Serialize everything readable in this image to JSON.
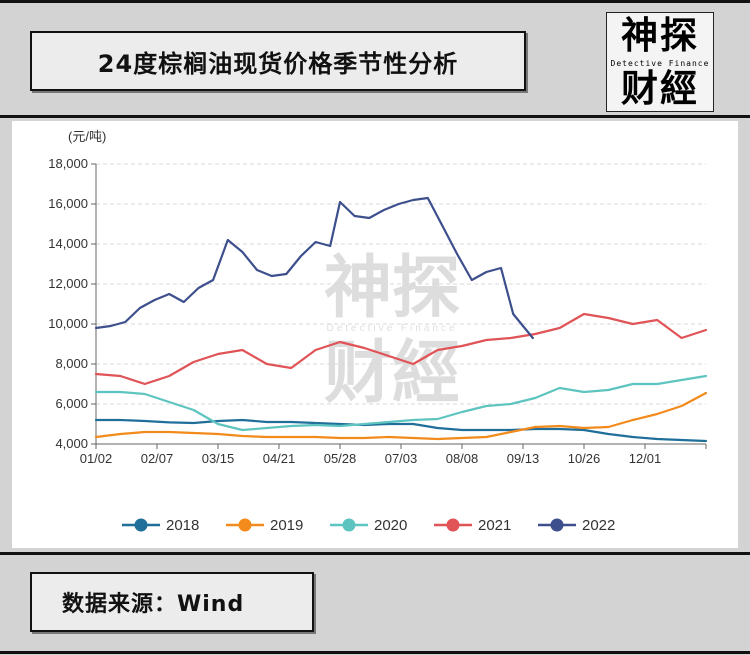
{
  "header": {
    "title": "24度棕榈油现货价格季节性分析",
    "logo_top": "神探",
    "logo_sub": "Detective Finance",
    "logo_bottom": "财經"
  },
  "footer": {
    "source": "数据来源：Wind"
  },
  "chart_data": {
    "type": "line",
    "unit": "(元/吨)",
    "x_ticks": [
      "01/02",
      "02/07",
      "03/15",
      "04/21",
      "05/28",
      "07/03",
      "08/08",
      "09/13",
      "10/26",
      "12/01"
    ],
    "y_ticks": [
      "4,000",
      "6,000",
      "8,000",
      "10,000",
      "12,000",
      "14,000",
      "16,000",
      "18,000"
    ],
    "ylim": [
      4000,
      18000
    ],
    "x_domain": [
      0,
      250
    ],
    "grid": true,
    "legend_position": "bottom",
    "colors": {
      "2018": "#1f6f9a",
      "2019": "#f28a1c",
      "2020": "#5ec4c0",
      "2021": "#e05356",
      "2022": "#3d4f8c"
    },
    "series": [
      {
        "name": "2018",
        "x": [
          0,
          10,
          20,
          30,
          40,
          50,
          60,
          70,
          80,
          90,
          100,
          110,
          120,
          130,
          140,
          150,
          160,
          170,
          180,
          190,
          200,
          210,
          220,
          230,
          240,
          250
        ],
        "values": [
          5200,
          5200,
          5150,
          5080,
          5050,
          5150,
          5200,
          5100,
          5100,
          5050,
          5000,
          4950,
          5000,
          5000,
          4800,
          4700,
          4700,
          4700,
          4750,
          4750,
          4700,
          4500,
          4350,
          4250,
          4200,
          4150
        ]
      },
      {
        "name": "2019",
        "x": [
          0,
          10,
          20,
          30,
          40,
          50,
          60,
          70,
          80,
          90,
          100,
          110,
          120,
          130,
          140,
          150,
          160,
          170,
          180,
          190,
          200,
          210,
          220,
          230,
          240,
          250
        ],
        "values": [
          4350,
          4500,
          4600,
          4600,
          4550,
          4500,
          4400,
          4350,
          4350,
          4350,
          4300,
          4300,
          4350,
          4300,
          4250,
          4300,
          4350,
          4600,
          4850,
          4900,
          4800,
          4850,
          5200,
          5500,
          5900,
          6550
        ]
      },
      {
        "name": "2020",
        "x": [
          0,
          10,
          20,
          30,
          40,
          50,
          60,
          70,
          80,
          90,
          100,
          110,
          120,
          130,
          140,
          150,
          160,
          170,
          180,
          190,
          200,
          210,
          220,
          230,
          240,
          250
        ],
        "values": [
          6600,
          6600,
          6500,
          6100,
          5700,
          5000,
          4700,
          4800,
          4900,
          4950,
          4900,
          5000,
          5100,
          5200,
          5250,
          5600,
          5900,
          6000,
          6300,
          6800,
          6600,
          6700,
          7000,
          7000,
          7200,
          7400
        ]
      },
      {
        "name": "2021",
        "x": [
          0,
          10,
          20,
          30,
          40,
          50,
          60,
          70,
          80,
          90,
          100,
          110,
          120,
          130,
          140,
          150,
          160,
          170,
          180,
          190,
          200,
          210,
          220,
          230,
          240,
          250
        ],
        "values": [
          7500,
          7400,
          7000,
          7400,
          8100,
          8500,
          8700,
          8000,
          7800,
          8700,
          9100,
          8800,
          8400,
          8000,
          8700,
          8900,
          9200,
          9300,
          9500,
          9800,
          10500,
          10300,
          10000,
          10200,
          9300,
          9700
        ]
      },
      {
        "name": "2022",
        "x": [
          0,
          6,
          12,
          18,
          24,
          30,
          36,
          42,
          48,
          54,
          60,
          66,
          72,
          78,
          84,
          90,
          96,
          100,
          106,
          112,
          118,
          124,
          130,
          136,
          142,
          148,
          154,
          160,
          166,
          171,
          175,
          179
        ],
        "values": [
          9800,
          9900,
          10100,
          10800,
          11200,
          11500,
          11100,
          11800,
          12200,
          14200,
          13600,
          12700,
          12400,
          12500,
          13400,
          14100,
          13900,
          16100,
          15400,
          15300,
          15700,
          16000,
          16200,
          16300,
          14900,
          13500,
          12200,
          12600,
          12800,
          10500,
          9900,
          9300
        ]
      }
    ]
  }
}
